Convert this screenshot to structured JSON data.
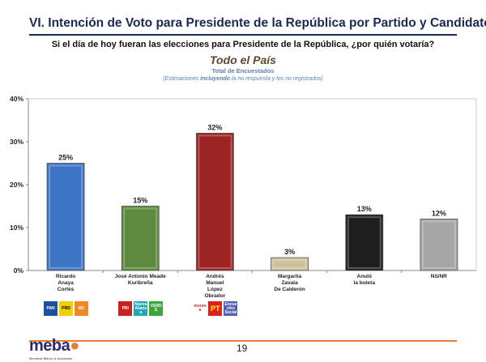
{
  "header": {
    "title": "VI. Intención de Voto para Presidente de la República por Partido y Candidato",
    "question": "Si el día de hoy fueran las elecciones para Presidente de la República, ¿por quién votaría?",
    "subtitle": "Todo el País",
    "subtitle2": "Total de Encuestados",
    "note_pre": "(Estimaciones ",
    "note_bold": "incluyendo",
    "note_post": " la no respuesta y los no registrados)"
  },
  "chart_data": {
    "type": "bar",
    "categories": [
      "Ricardo\nAnaya\nCortés",
      "José Antonio Meade\nKuribreña",
      "Andrés\nManuel\nLópez\nObrador",
      "Margarita\nZavala\nDe Calderón",
      "Anuló\nla boleta",
      "NS/NR"
    ],
    "values": [
      25,
      15,
      32,
      3,
      13,
      12
    ],
    "data_labels": [
      "25%",
      "15%",
      "32%",
      "3%",
      "13%",
      "12%"
    ],
    "colors": [
      "#3d74c4",
      "#5d8a3e",
      "#9c2424",
      "#cdc29c",
      "#1e1e1e",
      "#a6a6a6"
    ],
    "ylim": [
      0,
      40
    ],
    "yticks": [
      "0%",
      "10%",
      "20%",
      "30%",
      "40%"
    ],
    "grid": false
  },
  "party_logos": [
    [
      "PAN",
      "PRD",
      "MC"
    ],
    [
      "PRI",
      "Nueva Alianza",
      "VERDE"
    ],
    [
      "morena",
      "PT",
      "Encuentro Social"
    ]
  ],
  "footer": {
    "page": "19",
    "logo": "meba",
    "logo_sub": "Mendoza Blanco & Asociados",
    "accent": "#e57f2f"
  }
}
